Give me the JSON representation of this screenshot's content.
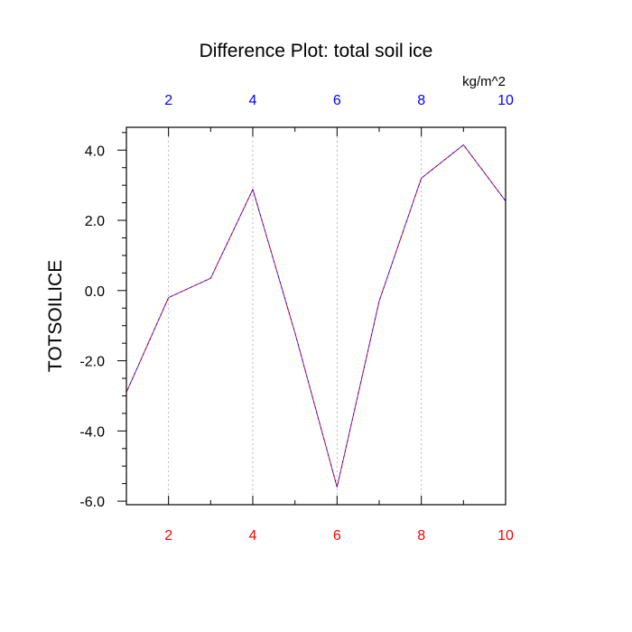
{
  "chart_data": {
    "type": "line",
    "title": "Difference Plot: total soil ice",
    "units_label": "kg/m^2",
    "ylabel": "TOTSOILICE",
    "xlabel": "",
    "xlim": [
      1,
      10
    ],
    "ylim": [
      -6.1,
      4.65
    ],
    "x_ticks": [
      2,
      4,
      6,
      8,
      10
    ],
    "x_tick_labels": [
      "2",
      "4",
      "6",
      "8",
      "10"
    ],
    "y_ticks": [
      -6,
      -4,
      -2,
      0,
      2,
      4
    ],
    "y_tick_labels": [
      "-6.0",
      "-4.0",
      "-2.0",
      "0.0",
      "2.0",
      "4.0"
    ],
    "grid": {
      "vertical": true,
      "horizontal": false
    },
    "series": [
      {
        "x": [
          1,
          2,
          3,
          4,
          5,
          6,
          7,
          8,
          9,
          10
        ],
        "y": [
          -2.9,
          -0.2,
          0.35,
          2.88,
          -1.2,
          -5.6,
          -0.3,
          3.2,
          4.15,
          2.55
        ],
        "colors": [
          "#ff0000",
          "#0000ff"
        ]
      }
    ],
    "colors": {
      "bottom_tick_labels": "#ff0000",
      "top_tick_labels": "#0000ff",
      "axis": "#000000",
      "grid": "#aaaaaa"
    }
  }
}
